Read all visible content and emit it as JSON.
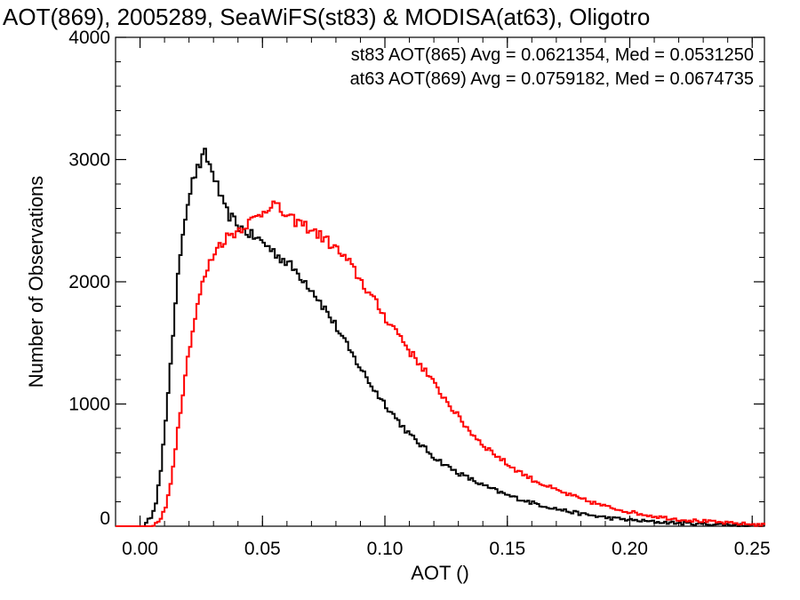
{
  "chart_data": {
    "type": "line",
    "title": "AOT(869), 2005289, SeaWiFS(st83) & MODISA(at63), Oligotro",
    "xlabel": "AOT ()",
    "ylabel": "Number of Observations",
    "xlim": [
      -0.01,
      0.255
    ],
    "ylim": [
      0,
      4000
    ],
    "x_ticks": [
      "0.00",
      "0.05",
      "0.10",
      "0.15",
      "0.20",
      "0.25"
    ],
    "y_ticks": [
      "0",
      "1000",
      "2000",
      "3000",
      "4000"
    ],
    "annotations": [
      "st83 AOT(865) Avg = 0.0621354, Med = 0.0531250",
      "at63 AOT(869) Avg = 0.0759182, Med = 0.0674735"
    ],
    "grid": false,
    "legend_position": "top-right",
    "series": [
      {
        "color": "#000000",
        "x": [
          -0.01,
          0.0,
          0.002,
          0.004,
          0.006,
          0.008,
          0.01,
          0.012,
          0.014,
          0.016,
          0.018,
          0.02,
          0.022,
          0.024,
          0.026,
          0.028,
          0.03,
          0.032,
          0.034,
          0.036,
          0.038,
          0.04,
          0.045,
          0.05,
          0.055,
          0.06,
          0.065,
          0.07,
          0.075,
          0.08,
          0.085,
          0.09,
          0.095,
          0.1,
          0.105,
          0.11,
          0.115,
          0.12,
          0.125,
          0.13,
          0.14,
          0.15,
          0.16,
          0.17,
          0.18,
          0.19,
          0.2,
          0.21,
          0.22,
          0.23,
          0.24,
          0.255
        ],
        "y": [
          0,
          0,
          20,
          80,
          200,
          450,
          850,
          1350,
          1800,
          2250,
          2550,
          2750,
          2880,
          2960,
          3050,
          2950,
          2850,
          2720,
          2600,
          2540,
          2500,
          2450,
          2380,
          2320,
          2230,
          2150,
          2050,
          1930,
          1780,
          1620,
          1440,
          1280,
          1120,
          990,
          860,
          740,
          650,
          560,
          490,
          430,
          330,
          250,
          190,
          140,
          100,
          70,
          50,
          35,
          25,
          18,
          12,
          5
        ]
      },
      {
        "color": "#ff0000",
        "x": [
          -0.01,
          0.004,
          0.006,
          0.008,
          0.01,
          0.012,
          0.014,
          0.016,
          0.018,
          0.02,
          0.022,
          0.024,
          0.026,
          0.028,
          0.03,
          0.032,
          0.034,
          0.036,
          0.038,
          0.04,
          0.042,
          0.045,
          0.048,
          0.05,
          0.052,
          0.054,
          0.056,
          0.058,
          0.06,
          0.065,
          0.07,
          0.075,
          0.08,
          0.085,
          0.09,
          0.095,
          0.1,
          0.105,
          0.11,
          0.115,
          0.12,
          0.125,
          0.13,
          0.135,
          0.14,
          0.15,
          0.16,
          0.17,
          0.18,
          0.19,
          0.2,
          0.21,
          0.22,
          0.23,
          0.24,
          0.255
        ],
        "y": [
          0,
          0,
          20,
          60,
          150,
          350,
          650,
          950,
          1250,
          1500,
          1700,
          1900,
          2050,
          2150,
          2250,
          2300,
          2350,
          2380,
          2400,
          2430,
          2460,
          2500,
          2540,
          2580,
          2620,
          2640,
          2600,
          2560,
          2520,
          2480,
          2420,
          2350,
          2260,
          2150,
          2000,
          1850,
          1700,
          1580,
          1420,
          1300,
          1150,
          1020,
          880,
          760,
          660,
          500,
          380,
          290,
          220,
          160,
          115,
          80,
          55,
          40,
          25,
          10
        ]
      }
    ]
  }
}
